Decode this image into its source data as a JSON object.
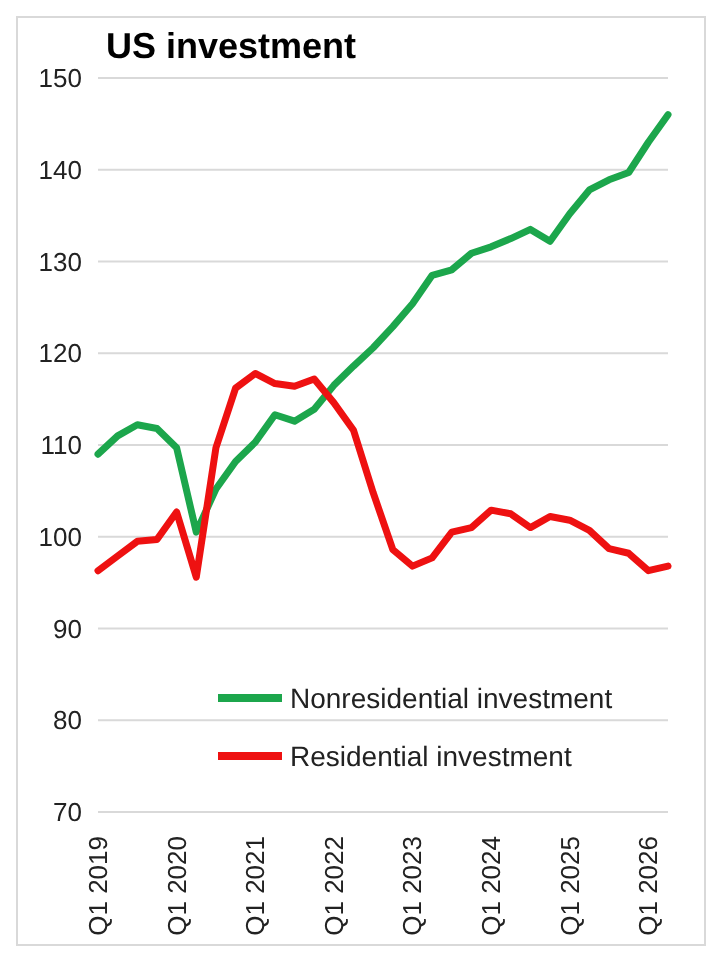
{
  "chart_data": {
    "type": "line",
    "title": "US investment",
    "categories": [
      "Q1 2019",
      null,
      null,
      null,
      "Q1 2020",
      null,
      null,
      null,
      "Q1 2021",
      null,
      null,
      null,
      "Q1 2022",
      null,
      null,
      null,
      "Q1 2023",
      null,
      null,
      null,
      "Q1 2024",
      null,
      null,
      null,
      "Q1 2025",
      null,
      null,
      null,
      "Q1 2026",
      null
    ],
    "series": [
      {
        "name": "Nonresidential investment",
        "color": "#1ca64c",
        "values": [
          109.0,
          111.0,
          112.2,
          111.8,
          109.7,
          100.5,
          105.2,
          108.2,
          110.3,
          113.3,
          112.6,
          113.9,
          116.5,
          118.6,
          120.6,
          122.9,
          125.4,
          128.5,
          129.1,
          130.9,
          131.6,
          132.5,
          133.5,
          132.2,
          135.2,
          137.8,
          138.9,
          139.7,
          143.0,
          146.0
        ]
      },
      {
        "name": "Residential investment",
        "color": "#ee1111",
        "values": [
          96.3,
          97.9,
          99.5,
          99.7,
          102.7,
          95.6,
          109.7,
          116.2,
          117.8,
          116.7,
          116.4,
          117.2,
          114.6,
          111.6,
          104.8,
          98.6,
          96.8,
          97.7,
          100.5,
          101.0,
          102.9,
          102.5,
          101.0,
          102.2,
          101.8,
          100.7,
          98.7,
          98.2,
          96.3,
          96.8
        ]
      }
    ],
    "ylim": [
      70,
      150
    ],
    "yticks": [
      70,
      80,
      90,
      100,
      110,
      120,
      130,
      140,
      150
    ],
    "grid": "y",
    "legend": "bottom",
    "marker": "none",
    "line_style": "solid"
  }
}
